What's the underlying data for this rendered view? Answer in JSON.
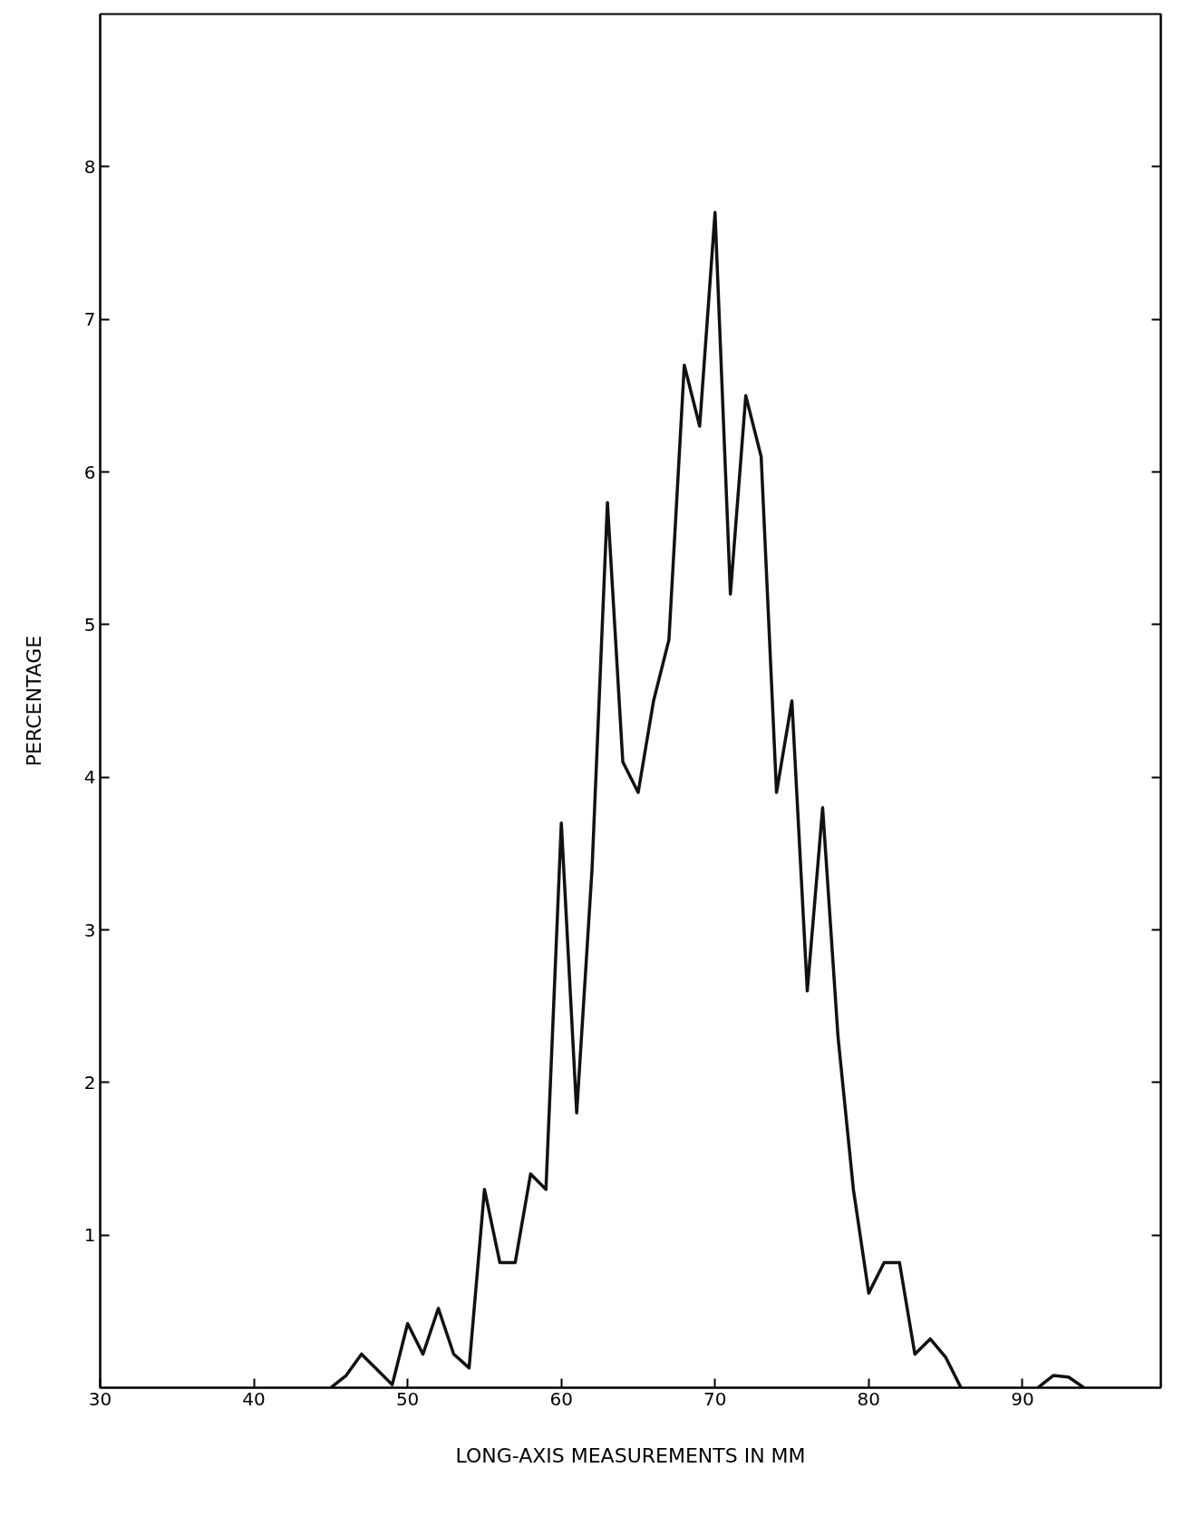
{
  "chart_data": {
    "type": "line",
    "xlabel": "LONG-AXIS MEASUREMENTS IN MM",
    "ylabel": "PERCENTAGE",
    "x": [
      45,
      46,
      47,
      48,
      49,
      50,
      51,
      52,
      53,
      54,
      55,
      56,
      57,
      58,
      59,
      60,
      61,
      62,
      63,
      64,
      65,
      66,
      67,
      68,
      69,
      70,
      71,
      72,
      73,
      74,
      75,
      76,
      77,
      78,
      79,
      80,
      81,
      82,
      83,
      84,
      85,
      86,
      87,
      88,
      89,
      90,
      91,
      92,
      93,
      94
    ],
    "series": [
      {
        "color": "#111111",
        "values": [
          0,
          0.08,
          0.22,
          0.12,
          0.02,
          0.42,
          0.22,
          0.52,
          0.22,
          0.13,
          1.3,
          0.82,
          0.82,
          1.4,
          1.3,
          3.7,
          1.8,
          3.4,
          5.8,
          4.1,
          3.9,
          4.5,
          4.9,
          6.7,
          6.3,
          7.7,
          5.2,
          6.5,
          6.1,
          3.9,
          4.5,
          2.6,
          3.8,
          2.3,
          1.3,
          0.62,
          0.82,
          0.82,
          0.22,
          0.32,
          0.2,
          0,
          null,
          null,
          null,
          null,
          0,
          0.08,
          0.07,
          0
        ]
      }
    ],
    "xlim": [
      30,
      99
    ],
    "ylim": [
      0,
      9
    ],
    "xticks": [
      30,
      40,
      50,
      60,
      70,
      80,
      90
    ],
    "yticks": [
      1,
      2,
      3,
      4,
      5,
      6,
      7,
      8
    ],
    "grid": false,
    "marker": "none",
    "line_style": "solid"
  }
}
